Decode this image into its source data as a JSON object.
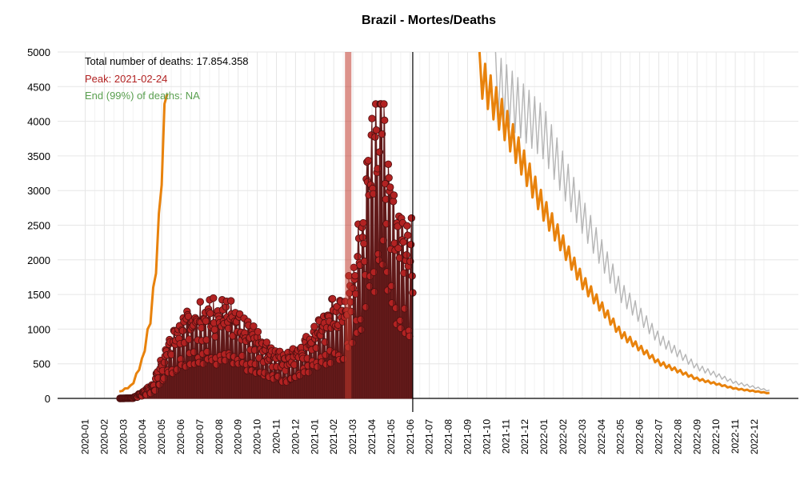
{
  "chart_data": {
    "type": "line",
    "title": "Brazil - Mortes/Deaths",
    "xlabel": "",
    "ylabel": "",
    "ylim": [
      0,
      5000
    ],
    "y_ticks": [
      "0",
      "500",
      "1000",
      "1500",
      "2000",
      "2500",
      "3000",
      "3500",
      "4000",
      "4500",
      "5000"
    ],
    "x_ticks": [
      "2020-01",
      "2020-02",
      "2020-03",
      "2020-04",
      "2020-05",
      "2020-06",
      "2020-07",
      "2020-08",
      "2020-09",
      "2020-10",
      "2020-11",
      "2020-12",
      "2021-01",
      "2021-02",
      "2021-03",
      "2021-04",
      "2021-05",
      "2021-06",
      "2021-07",
      "2021-08",
      "2021-09",
      "2021-10",
      "2021-11",
      "2021-12",
      "2022-01",
      "2022-02",
      "2022-03",
      "2022-04",
      "2022-05",
      "2022-06",
      "2022-07",
      "2022-08",
      "2022-09",
      "2022-10",
      "2022-11",
      "2022-12"
    ],
    "grid": true,
    "annotations": {
      "total": "Total number of deaths: 17.854.358",
      "peak": "Peak: 2021-02-24",
      "end": "End (99%) of deaths: NA"
    },
    "peak_date": "2021-02-24",
    "current_date": "2021-06-05",
    "colors": {
      "observed": "#b22222",
      "observed_fill": "#6b1e1e",
      "model": "#e8820c",
      "projection": "#b5b5b5",
      "peak": "#c0392b",
      "end": "#5aa050",
      "grid": "#e6e6e6"
    },
    "series": [
      {
        "kind": "observed",
        "monthly_average": [
          {
            "x": "2020-03",
            "y": 5
          },
          {
            "x": "2020-04",
            "y": 150
          },
          {
            "x": "2020-05",
            "y": 700
          },
          {
            "x": "2020-06",
            "y": 1000
          },
          {
            "x": "2020-07",
            "y": 1050
          },
          {
            "x": "2020-08",
            "y": 1000
          },
          {
            "x": "2020-09",
            "y": 850
          },
          {
            "x": "2020-10",
            "y": 600
          },
          {
            "x": "2020-11",
            "y": 450
          },
          {
            "x": "2020-12",
            "y": 650
          },
          {
            "x": "2021-01",
            "y": 1000
          },
          {
            "x": "2021-02",
            "y": 1100
          },
          {
            "x": "2021-03",
            "y": 2000
          },
          {
            "x": "2021-04",
            "y": 3000
          },
          {
            "x": "2021-05",
            "y": 2000
          },
          {
            "x": "2021-06",
            "y": 1800
          }
        ],
        "max_value": 4250
      },
      {
        "kind": "model-early",
        "points": [
          {
            "x": "2020-02-25",
            "y": 100
          },
          {
            "x": "2020-03-15",
            "y": 200
          },
          {
            "x": "2020-04-01",
            "y": 600
          },
          {
            "x": "2020-04-15",
            "y": 1300
          },
          {
            "x": "2020-04-25",
            "y": 2300
          },
          {
            "x": "2020-05-01",
            "y": 3500
          },
          {
            "x": "2020-05-10",
            "y": 5000
          }
        ]
      },
      {
        "kind": "model-late",
        "points": [
          {
            "x": "2021-09-20",
            "y": 5000
          },
          {
            "x": "2021-11-01",
            "y": 4200
          },
          {
            "x": "2022-01-01",
            "y": 2900
          },
          {
            "x": "2022-03-01",
            "y": 1800
          },
          {
            "x": "2022-05-01",
            "y": 1000
          },
          {
            "x": "2022-07-01",
            "y": 550
          },
          {
            "x": "2022-09-01",
            "y": 300
          },
          {
            "x": "2022-11-01",
            "y": 150
          },
          {
            "x": "2022-12-25",
            "y": 80
          }
        ]
      },
      {
        "kind": "projection",
        "points": [
          {
            "x": "2021-10-15",
            "y": 5000
          },
          {
            "x": "2022-01-01",
            "y": 4200
          },
          {
            "x": "2022-03-01",
            "y": 2900
          },
          {
            "x": "2022-05-01",
            "y": 1700
          },
          {
            "x": "2022-07-01",
            "y": 950
          },
          {
            "x": "2022-09-01",
            "y": 500
          },
          {
            "x": "2022-11-01",
            "y": 250
          },
          {
            "x": "2022-12-25",
            "y": 120
          }
        ]
      }
    ]
  }
}
